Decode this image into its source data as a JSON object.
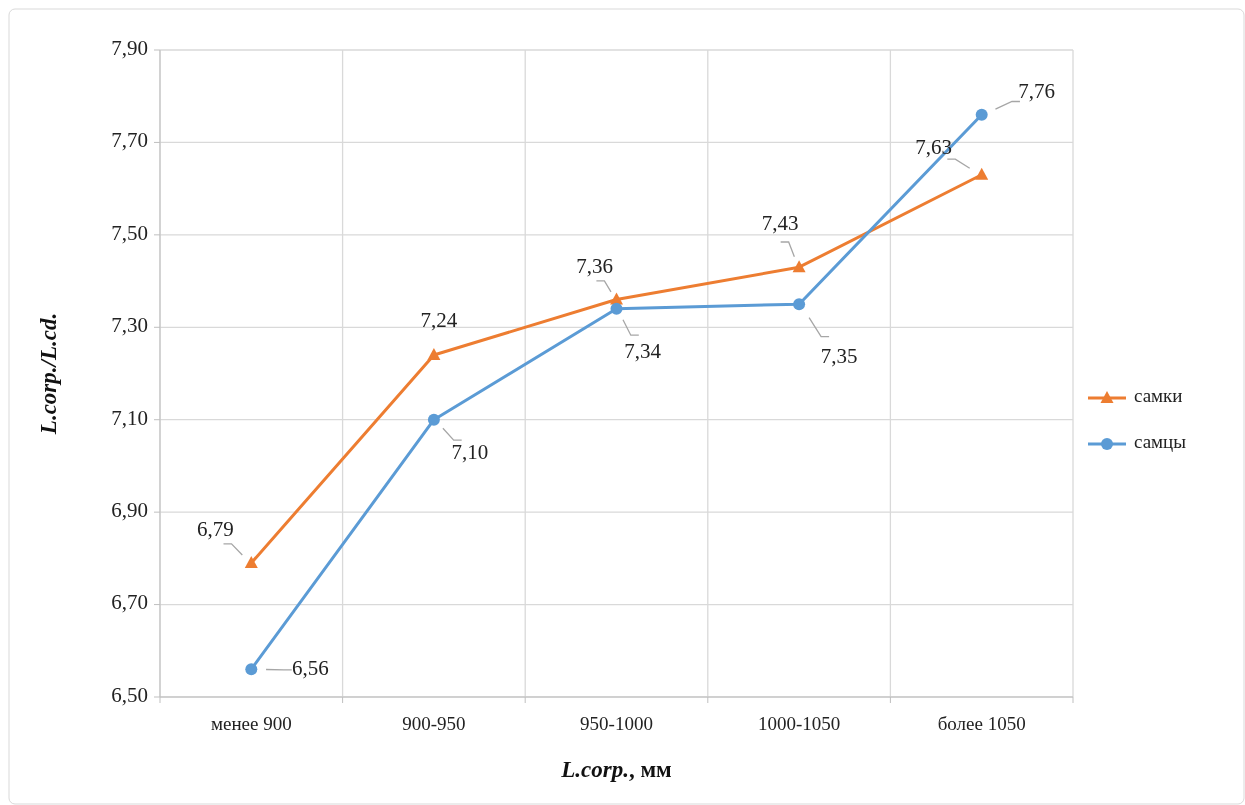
{
  "chart_data": {
    "type": "line",
    "xlabel": "L.corp., мм",
    "ylabel": "L.corp./L.cd.",
    "categories": [
      "менее 900",
      "900-950",
      "950-1000",
      "1000-1050",
      "более 1050"
    ],
    "series": [
      {
        "name": "самки",
        "color": "#ed7d31",
        "marker": "triangle",
        "values": [
          6.79,
          7.24,
          7.36,
          7.43,
          7.63
        ],
        "value_labels": [
          "6,79",
          "7,24",
          "7,36",
          "7,43",
          "7,63"
        ]
      },
      {
        "name": "самцы",
        "color": "#5b9bd5",
        "marker": "circle",
        "values": [
          6.56,
          7.1,
          7.34,
          7.35,
          7.76
        ],
        "value_labels": [
          "6,56",
          "7,10",
          "7,34",
          "7,35",
          "7,76"
        ]
      }
    ],
    "ylim": [
      6.5,
      7.9
    ],
    "yticks": [
      {
        "value": 6.5,
        "label": "6,50"
      },
      {
        "value": 6.7,
        "label": "6,70"
      },
      {
        "value": 6.9,
        "label": "6,90"
      },
      {
        "value": 7.1,
        "label": "7,10"
      },
      {
        "value": 7.3,
        "label": "7,30"
      },
      {
        "value": 7.5,
        "label": "7,50"
      },
      {
        "value": 7.7,
        "label": "7,70"
      },
      {
        "value": 7.9,
        "label": "7,90"
      }
    ],
    "grid": true,
    "legend": "right"
  }
}
